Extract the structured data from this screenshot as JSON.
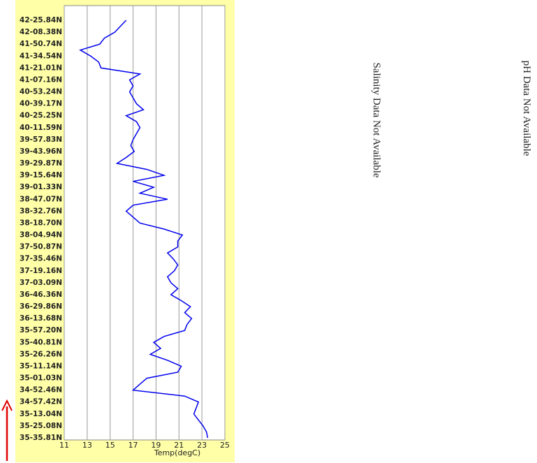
{
  "chart_data": {
    "type": "line",
    "orientation": "horizontal",
    "xlabel": "Temp(degC)",
    "xlim": [
      11,
      25
    ],
    "xticks": [
      11,
      13,
      15,
      17,
      19,
      21,
      23,
      25
    ],
    "grid": true,
    "categories": [
      "42-25.84N",
      null,
      "42-08.38N",
      null,
      "41-50.74N",
      null,
      "41-34.54N",
      null,
      "41-21.01N",
      null,
      "41-07.16N",
      null,
      "40-53.24N",
      null,
      "40-39.17N",
      null,
      "40-25.25N",
      null,
      "40-11.59N",
      null,
      "39-57.83N",
      null,
      "39-43.96N",
      null,
      "39-29.87N",
      null,
      "39-15.64N",
      null,
      "39-01.33N",
      null,
      "38-47.07N",
      null,
      "38-32.76N",
      null,
      "38-18.70N",
      null,
      "38-04.94N",
      null,
      "37-50.87N",
      null,
      "37-35.46N",
      null,
      "37-19.16N",
      null,
      "37-03.09N",
      null,
      "36-46.36N",
      null,
      "36-29.86N",
      null,
      "36-13.68N",
      null,
      "35-57.20N",
      null,
      "35-40.81N",
      null,
      "35-26.26N",
      null,
      "35-11.14N",
      null,
      "35-01.03N",
      null,
      "34-52.46N",
      null,
      "34-57.42N",
      null,
      "35-13.04N",
      null,
      "35-25.08N",
      null,
      "35-35.81N"
    ],
    "series": [
      {
        "color": "#0000ee",
        "values": [
          16.4,
          15.9,
          15.4,
          14.5,
          14.1,
          12.4,
          13.3,
          14.0,
          14.2,
          17.6,
          16.7,
          17.0,
          16.7,
          17.0,
          17.3,
          17.9,
          16.4,
          17.3,
          17.6,
          17.3,
          17.0,
          16.8,
          17.1,
          16.4,
          15.6,
          18.2,
          19.7,
          17.0,
          18.8,
          17.6,
          20.0,
          17.0,
          16.4,
          17.0,
          17.6,
          19.7,
          21.3,
          20.9,
          20.9,
          20.0,
          20.5,
          20.9,
          20.6,
          20.0,
          20.3,
          20.9,
          20.3,
          21.2,
          22.0,
          21.5,
          22.1,
          21.7,
          21.5,
          19.7,
          18.8,
          19.4,
          18.5,
          20.0,
          21.2,
          20.9,
          18.2,
          17.6,
          17.0,
          21.5,
          22.7,
          22.5,
          22.3,
          22.7,
          23.1,
          23.4,
          23.5
        ]
      }
    ],
    "annotations": [
      "Salinity Data Not Available",
      "pH Data Not Available"
    ]
  }
}
